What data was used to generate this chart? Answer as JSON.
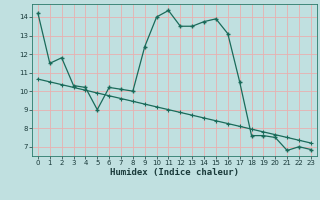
{
  "xlabel": "Humidex (Indice chaleur)",
  "background_color": "#c0e0e0",
  "line_color": "#1a6b5a",
  "grid_color": "#e8b0b0",
  "xlim": [
    -0.5,
    23.5
  ],
  "ylim": [
    6.5,
    14.7
  ],
  "xticks": [
    0,
    1,
    2,
    3,
    4,
    5,
    6,
    7,
    8,
    9,
    10,
    11,
    12,
    13,
    14,
    15,
    16,
    17,
    18,
    19,
    20,
    21,
    22,
    23
  ],
  "yticks": [
    7,
    8,
    9,
    10,
    11,
    12,
    13,
    14
  ],
  "curve1_x": [
    0,
    1,
    2,
    3,
    4,
    5,
    6,
    7,
    8,
    9,
    10,
    11,
    12,
    13,
    14,
    15,
    16,
    17,
    18,
    19,
    20,
    21,
    22,
    23
  ],
  "curve1_y": [
    14.2,
    11.5,
    11.8,
    10.3,
    10.2,
    9.0,
    10.2,
    10.1,
    10.0,
    12.4,
    14.0,
    14.35,
    13.5,
    13.5,
    13.75,
    13.9,
    13.1,
    10.5,
    7.6,
    7.6,
    7.5,
    6.8,
    7.0,
    6.85
  ],
  "curve2_x": [
    0,
    1,
    2,
    3,
    4,
    5,
    6,
    7,
    8,
    9,
    10,
    11,
    12,
    13,
    14,
    15,
    16,
    17,
    18,
    19,
    20,
    21,
    22,
    23
  ],
  "curve2_y": [
    10.65,
    10.5,
    10.35,
    10.2,
    10.05,
    9.9,
    9.75,
    9.6,
    9.45,
    9.3,
    9.15,
    9.0,
    8.85,
    8.7,
    8.55,
    8.4,
    8.25,
    8.1,
    7.95,
    7.8,
    7.65,
    7.5,
    7.35,
    7.2
  ]
}
